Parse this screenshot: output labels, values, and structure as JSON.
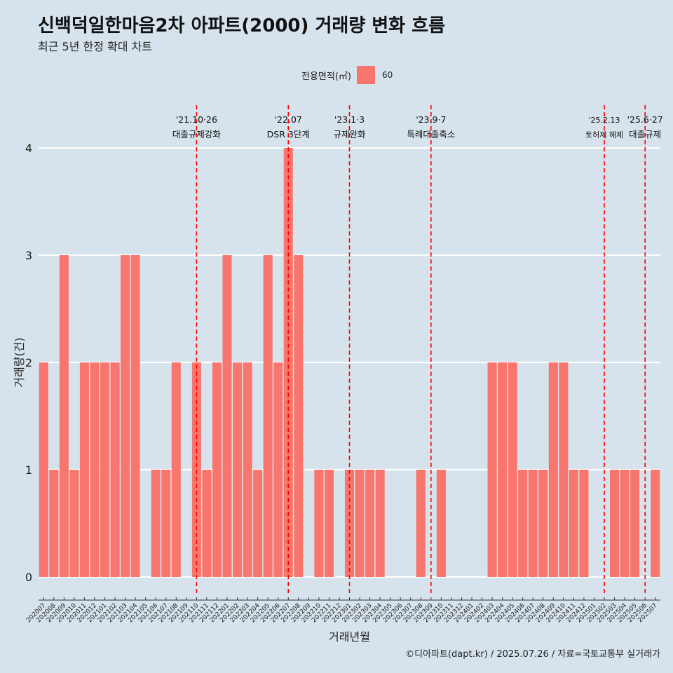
{
  "title": "신백덕일한마음2차 아파트(2000) 거래량 변화 흐름",
  "subtitle": "최근 5년 한정 확대 차트",
  "caption": "©디아파트(dapt.kr) / 2025.07.26 / 자료=국토교통부 실거래가",
  "legend": {
    "title": "전용면적(㎡)",
    "label": "60",
    "color": "#f8766d"
  },
  "chart_data": {
    "type": "bar",
    "xlabel": "거래년월",
    "ylabel": "거래량(건)",
    "ylim": [
      0,
      4
    ],
    "yticks": [
      0,
      1,
      2,
      3,
      4
    ],
    "grid": true,
    "legend_position": "top",
    "categories": [
      "202007",
      "202008",
      "202009",
      "202010",
      "202011",
      "202012",
      "202101",
      "202102",
      "202103",
      "202104",
      "202105",
      "202106",
      "202107",
      "202108",
      "202109",
      "202110",
      "202111",
      "202112",
      "202201",
      "202202",
      "202203",
      "202204",
      "202205",
      "202206",
      "202207",
      "202208",
      "202209",
      "202210",
      "202211",
      "202212",
      "202301",
      "202302",
      "202303",
      "202304",
      "202305",
      "202306",
      "202307",
      "202308",
      "202309",
      "202310",
      "202311",
      "202312",
      "202401",
      "202402",
      "202403",
      "202404",
      "202405",
      "202406",
      "202407",
      "202408",
      "202409",
      "202410",
      "202411",
      "202412",
      "202501",
      "202502",
      "202503",
      "202504",
      "202505",
      "202506",
      "202507"
    ],
    "series": [
      {
        "name": "60",
        "color": "#f8766d",
        "values": [
          2,
          1,
          3,
          1,
          2,
          2,
          2,
          2,
          3,
          3,
          0,
          1,
          1,
          2,
          0,
          2,
          1,
          2,
          3,
          2,
          2,
          1,
          3,
          2,
          4,
          3,
          0,
          1,
          1,
          0,
          1,
          1,
          1,
          1,
          0,
          0,
          0,
          1,
          0,
          1,
          0,
          0,
          0,
          0,
          2,
          2,
          2,
          1,
          1,
          1,
          2,
          2,
          1,
          1,
          0,
          0,
          1,
          1,
          1,
          0,
          1
        ]
      }
    ],
    "annotations": [
      {
        "category": "202110",
        "date": "'21.10·26",
        "label": "대출규제강화"
      },
      {
        "category": "202207",
        "date": "'22.07",
        "label": "DSR 3단계"
      },
      {
        "category": "202301",
        "date": "'23.1·3",
        "label": "규제완화"
      },
      {
        "category": "202309",
        "date": "'23.9·7",
        "label": "특례대출축소"
      },
      {
        "category": "202502",
        "date": "'25.2.13",
        "label": "토허제 해제"
      },
      {
        "category": "202506",
        "date": "'25.6·27",
        "label": "대출규제"
      }
    ]
  }
}
